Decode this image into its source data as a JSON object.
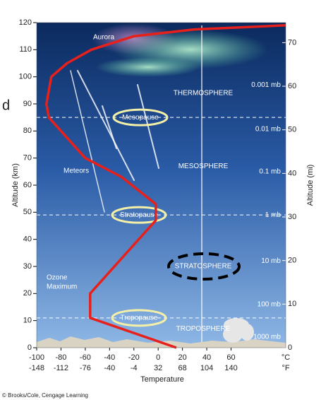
{
  "chart_data": {
    "type": "line",
    "x_label": "Temperature",
    "y_label": "Altitude (km)",
    "y2_label": "Altitude (mi)",
    "x_unit": "°C",
    "x2_unit": "°F",
    "xlim": [
      -100,
      105
    ],
    "xticks": [
      -100,
      -80,
      -60,
      -40,
      -20,
      0,
      20,
      40,
      60
    ],
    "x2lim": [
      -148,
      221
    ],
    "x2ticks": [
      -148,
      -112,
      -76,
      -40,
      -4,
      32,
      68,
      104,
      140
    ],
    "ylim": [
      0,
      120
    ],
    "yticks": [
      0,
      10,
      20,
      30,
      40,
      50,
      60,
      70,
      80,
      90,
      100,
      110,
      120
    ],
    "y2lim": [
      0,
      74.6
    ],
    "y2ticks": [
      0,
      10,
      20,
      30,
      40,
      50,
      60,
      70
    ],
    "series": [
      {
        "color": "#e8201c",
        "x": [
          15,
          -56,
          -56,
          -30,
          -2,
          -2,
          -30,
          -60,
          -90,
          -92,
          -88,
          -75,
          -55,
          -20,
          30,
          105
        ],
        "values": [
          0,
          11,
          20,
          33,
          47,
          53,
          63,
          70,
          85,
          90,
          100,
          105,
          110,
          115,
          117.5,
          119
        ]
      }
    ],
    "boundaries": [
      {
        "name": "Tropopause",
        "altitude": 11
      },
      {
        "name": "Stratopause",
        "altitude": 49
      },
      {
        "name": "Mesopause",
        "altitude": 85
      }
    ],
    "layers": [
      "TROPOSPHERE",
      "STRATOSPHERE",
      "MESOSPHERE",
      "THERMOSPHERE"
    ],
    "pressures": [
      "1000 mb",
      "100 mb",
      "10 mb",
      "1 mb",
      "0.1 mb",
      "0.01 mb",
      "0.001 mb"
    ],
    "annotations": {
      "aurora": "Aurora",
      "meteors": "Meteors",
      "ozone": [
        "Ozone",
        "Maximum"
      ]
    },
    "credit": "© Brooks/Cole, Cengage Learning",
    "side_fragment": "d"
  }
}
